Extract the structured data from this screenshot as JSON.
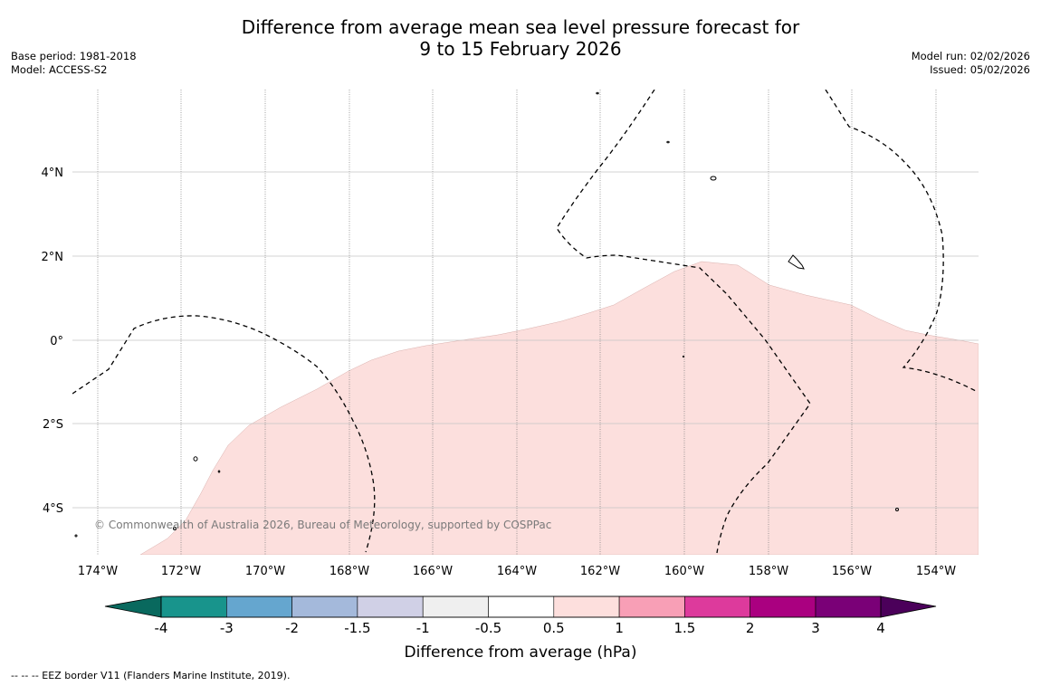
{
  "title": {
    "line1": "Difference from average mean sea level pressure forecast for",
    "line2": "9 to 15 February 2026"
  },
  "info_left": {
    "base_period": "Base period: 1981-2018",
    "model": "Model: ACCESS-S2"
  },
  "info_right": {
    "model_run": "Model run: 02/02/2026",
    "issued": "Issued: 05/02/2026"
  },
  "map": {
    "lon_labels": [
      "174°W",
      "172°W",
      "170°W",
      "168°W",
      "166°W",
      "164°W",
      "162°W",
      "160°W",
      "158°W",
      "156°W",
      "154°W"
    ],
    "lat_labels": [
      "4°N",
      "2°N",
      "0°",
      "2°S",
      "4°S"
    ],
    "copyright": "© Commonwealth of Australia 2026, Bureau of Meteorology, supported by COSPPac",
    "shaded_category": "0.5 to 1",
    "shade_color": "#fcdfdd"
  },
  "colorbar": {
    "tick_labels": [
      "-4",
      "-3",
      "-2",
      "-1.5",
      "-1",
      "-0.5",
      "0.5",
      "1",
      "1.5",
      "2",
      "3",
      "4"
    ],
    "colors": [
      "#18948c",
      "#65a6cf",
      "#a4b9db",
      "#d0d0e6",
      "#efefef",
      "#ffffff",
      "#fddfdd",
      "#f89fb6",
      "#dd3a9c",
      "#aa0080",
      "#7a0077"
    ],
    "under_color": "#09695e",
    "over_color": "#4b005a",
    "label": "Difference from average (hPa)"
  },
  "footer": {
    "legend": "--  --  -- EEZ border V11 (Flanders Marine Institute, 2019)."
  }
}
